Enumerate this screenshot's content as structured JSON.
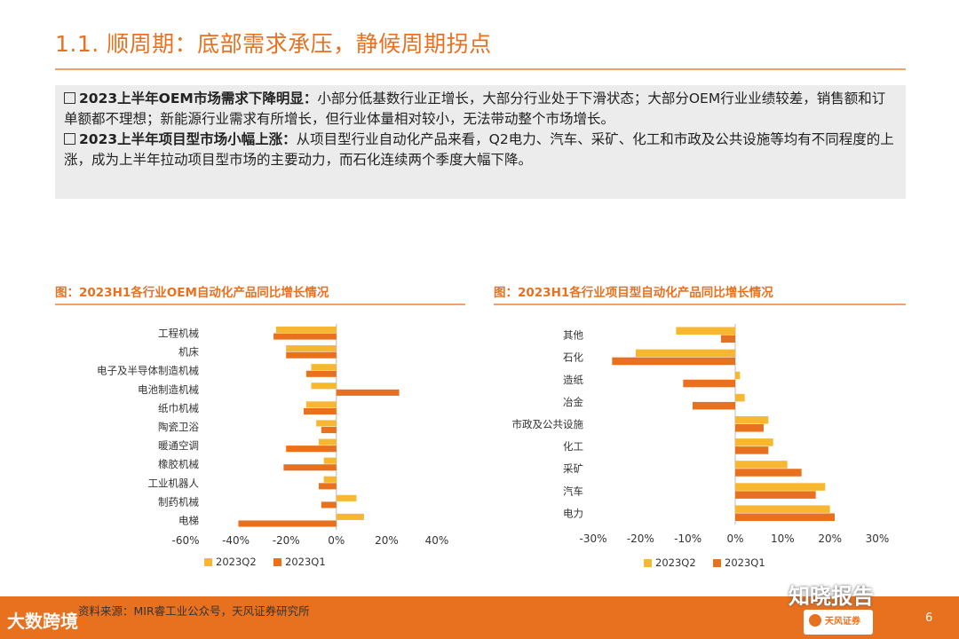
{
  "title": "1.1. 顺周期：底部需求承压，静候周期拐点",
  "bullets": [
    {
      "lead": "2023上半年OEM市场需求下降明显：",
      "text": "小部分低基数行业正增长，大部分行业处于下滑状态；大部分OEM行业业绩较差，销售额和订单额都不理想；新能源行业需求有所增长，但行业体量相对较小，无法带动整个市场增长。"
    },
    {
      "lead": "2023上半年项目型市场小幅上涨：",
      "text": "从项目型行业自动化产品来看，Q2电力、汽车、采矿、化工和市政及公共设施等均有不同程度的上涨，成为上半年拉动项目型市场的主要动力，而石化连续两个季度大幅下降。"
    }
  ],
  "colors": {
    "q2": "#f7b731",
    "q1": "#e8711f",
    "accent": "#e8711f"
  },
  "chart_data": [
    {
      "type": "bar",
      "orientation": "horizontal",
      "title": "图：2023H1各行业OEM自动化产品同比增长情况",
      "categories": [
        "工程机械",
        "机床",
        "电子及半导体制造机械",
        "电池制造机械",
        "纸巾机械",
        "陶瓷卫浴",
        "暖通空调",
        "橡胶机械",
        "工业机器人",
        "制药机械",
        "电梯"
      ],
      "series": [
        {
          "name": "2023Q2",
          "values": [
            -24,
            -20,
            -10,
            -10,
            -12,
            -8,
            -7,
            -5,
            -5,
            8,
            11
          ]
        },
        {
          "name": "2023Q1",
          "values": [
            -25,
            -20,
            -12,
            25,
            -13,
            -6,
            -20,
            -21,
            -7,
            -6,
            -39
          ]
        }
      ],
      "xticks": [
        "-60%",
        "-40%",
        "-20%",
        "0%",
        "20%",
        "40%"
      ],
      "xlim": [
        -60,
        40
      ],
      "legend": "bottom"
    },
    {
      "type": "bar",
      "orientation": "horizontal",
      "title": "图：2023H1各行业项目型自动化产品同比增长情况",
      "categories": [
        "其他",
        "石化",
        "造纸",
        "冶金",
        "市政及公共设施",
        "化工",
        "采矿",
        "汽车",
        "电力"
      ],
      "series": [
        {
          "name": "2023Q2",
          "values": [
            -12.5,
            -21,
            1,
            2,
            7,
            8,
            11,
            19,
            20
          ]
        },
        {
          "name": "2023Q1",
          "values": [
            -3,
            -26,
            -11,
            -9,
            6,
            7,
            14,
            17,
            21
          ]
        }
      ],
      "xticks": [
        "-30%",
        "-20%",
        "-10%",
        "0%",
        "10%",
        "20%",
        "30%"
      ],
      "xlim": [
        -30,
        30
      ],
      "legend": "bottom"
    }
  ],
  "footer": {
    "source": "资料来源：MIR睿工业公众号，天风证券研究所",
    "page": "6"
  },
  "watermarks": {
    "left": "大数跨境",
    "right": "知晓报告"
  },
  "logo_text": "天风证券"
}
